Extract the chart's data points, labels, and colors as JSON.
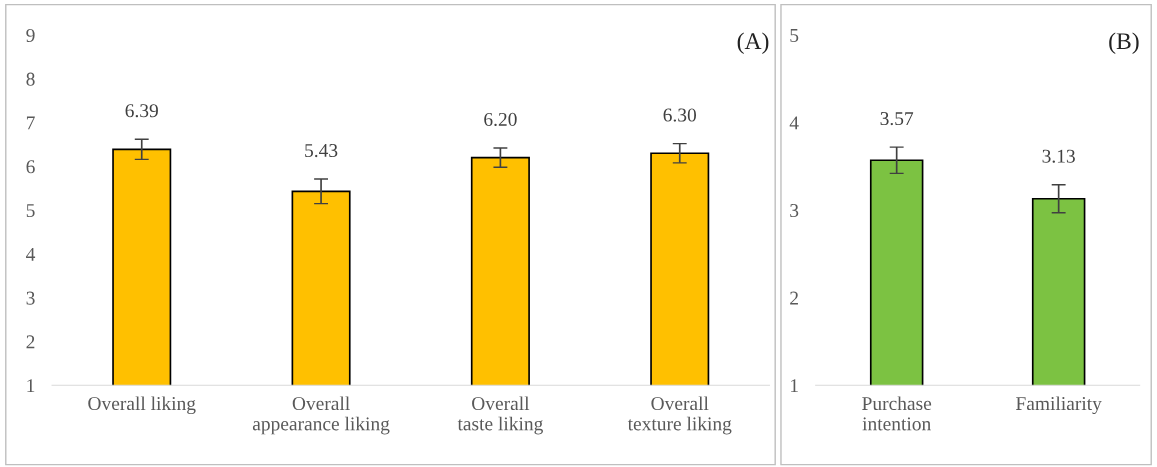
{
  "chart_data": [
    {
      "type": "bar",
      "title": "(A)",
      "categories": [
        "Overall liking",
        "Overall\nappearance liking",
        "Overall\ntaste liking",
        "Overall\ntexture liking"
      ],
      "values": [
        6.39,
        5.43,
        6.2,
        6.3
      ],
      "errors": [
        0.23,
        0.28,
        0.22,
        0.22
      ],
      "color": "#ffc000",
      "ylim": [
        1,
        9
      ],
      "yticks": [
        1,
        2,
        3,
        4,
        5,
        6,
        7,
        8,
        9
      ],
      "value_labels": [
        "6.39",
        "5.43",
        "6.20",
        "6.30"
      ],
      "grid": false,
      "legend": false
    },
    {
      "type": "bar",
      "title": "(B)",
      "categories": [
        "Purchase\nintention",
        "Familiarity"
      ],
      "values": [
        3.57,
        3.13
      ],
      "errors": [
        0.15,
        0.16
      ],
      "color": "#7cc242",
      "ylim": [
        1,
        5
      ],
      "yticks": [
        1,
        2,
        3,
        4,
        5
      ],
      "value_labels": [
        "3.57",
        "3.13"
      ],
      "grid": false,
      "legend": false
    }
  ]
}
